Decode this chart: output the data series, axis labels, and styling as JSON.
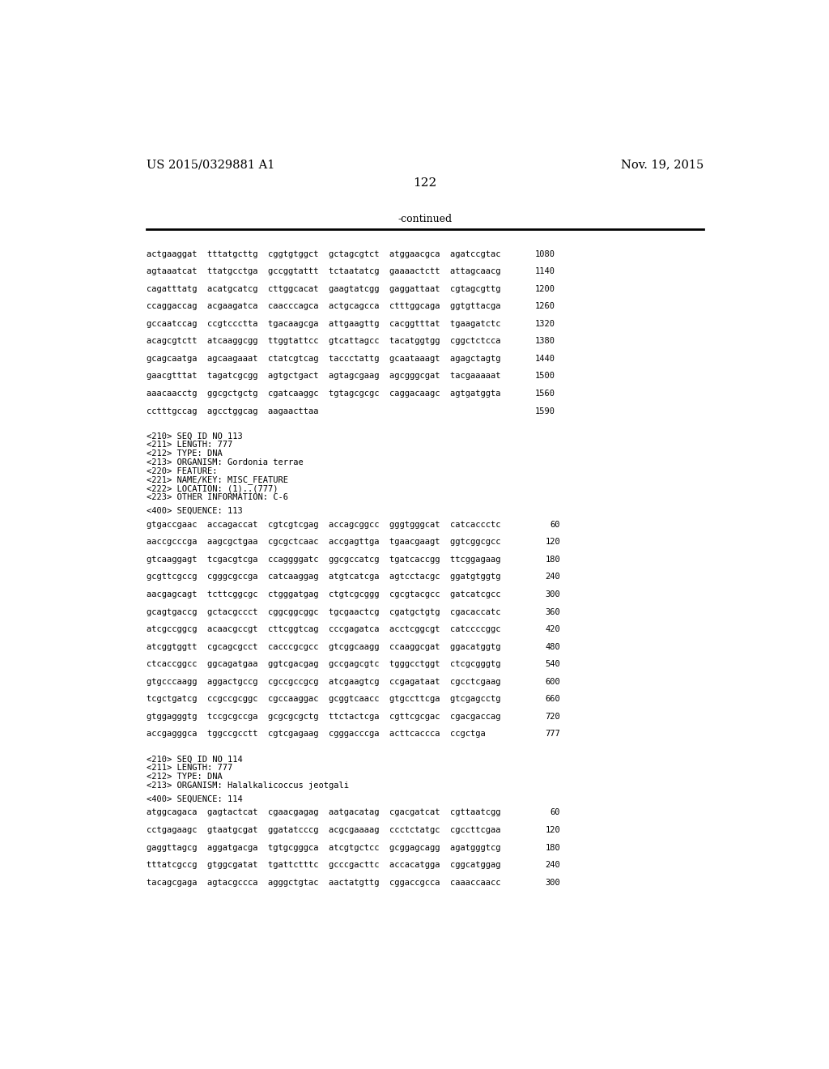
{
  "header_left": "US 2015/0329881 A1",
  "header_right": "Nov. 19, 2015",
  "page_number": "122",
  "continued_text": "-continued",
  "background_color": "#ffffff",
  "text_color": "#000000",
  "mono_font_size": 7.5,
  "header_font_size": 10.5,
  "page_num_font_size": 11,
  "continued_font_size": 9.0,
  "seq_lines": [
    [
      "actgaaggat  tttatgcttg  cggtgtggct  gctagcgtct  atggaacgca  agatccgtac",
      "1080"
    ],
    [
      "agtaaatcat  ttatgcctga  gccggtattt  tctaatatcg  gaaaactctt  attagcaacg",
      "1140"
    ],
    [
      "cagatttatg  acatgcatcg  cttggcacat  gaagtatcgg  gaggattaat  cgtagcgttg",
      "1200"
    ],
    [
      "ccaggaccag  acgaagatca  caacccagca  actgcagcca  ctttggcaga  ggtgttacga",
      "1260"
    ],
    [
      "gccaatccag  ccgtccctta  tgacaagcga  attgaagttg  cacggtttat  tgaagatctc",
      "1320"
    ],
    [
      "acagcgtctt  atcaaggcgg  ttggtattcc  gtcattagcc  tacatggtgg  cggctctcca",
      "1380"
    ],
    [
      "gcagcaatga  agcaagaaat  ctatcgtcag  taccctattg  gcaataaagt  agagctagtg",
      "1440"
    ],
    [
      "gaacgtttat  tagatcgcgg  agtgctgact  agtagcgaag  agcgggcgat  tacgaaaaat",
      "1500"
    ],
    [
      "aaacaacctg  ggcgctgctg  cgatcaaggc  tgtagcgcgc  caggacaagc  agtgatggta",
      "1560"
    ],
    [
      "cctttgccag  agcctggcag  aagaacttaa",
      "1590"
    ]
  ],
  "meta_113": [
    "<210> SEQ ID NO 113",
    "<211> LENGTH: 777",
    "<212> TYPE: DNA",
    "<213> ORGANISM: Gordonia terrae",
    "<220> FEATURE:",
    "<221> NAME/KEY: MISC_FEATURE",
    "<222> LOCATION: (1)..(777)",
    "<223> OTHER INFORMATION: C-6"
  ],
  "seq_400_113": "<400> SEQUENCE: 113",
  "seq_113_lines": [
    [
      "gtgaccgaac  accagaccat  cgtcgtcgag  accagcggcc  gggtgggcat  catcaccctc",
      "60"
    ],
    [
      "aaccgcccga  aagcgctgaa  cgcgctcaac  accgagttga  tgaacgaagt  ggtcggcgcc",
      "120"
    ],
    [
      "gtcaaggagt  tcgacgtcga  ccaggggatc  ggcgccatcg  tgatcaccgg  ttcggagaag",
      "180"
    ],
    [
      "gcgttcgccg  cgggcgccga  catcaaggag  atgtcatcga  agtcctacgc  ggatgtggtg",
      "240"
    ],
    [
      "aacgagcagt  tcttcggcgc  ctgggatgag  ctgtcgcggg  cgcgtacgcc  gatcatcgcc",
      "300"
    ],
    [
      "gcagtgaccg  gctacgccct  cggcggcggc  tgcgaactcg  cgatgctgtg  cgacaccatc",
      "360"
    ],
    [
      "atcgccggcg  acaacgccgt  cttcggtcag  cccgagatca  acctcggcgt  catccccggc",
      "420"
    ],
    [
      "atcggtggtt  cgcagcgcct  cacccgcgcc  gtcggcaagg  ccaaggcgat  ggacatggtg",
      "480"
    ],
    [
      "ctcaccggcc  ggcagatgaa  ggtcgacgag  gccgagcgtc  tgggcctggt  ctcgcgggtg",
      "540"
    ],
    [
      "gtgcccaagg  aggactgccg  cgccgccgcg  atcgaagtcg  ccgagataat  cgcctcgaag",
      "600"
    ],
    [
      "tcgctgatcg  ccgccgcggc  cgccaaggac  gcggtcaacc  gtgccttcga  gtcgagcctg",
      "660"
    ],
    [
      "gtggagggtg  tccgcgccga  gcgcgcgctg  ttctactcga  cgttcgcgac  cgacgaccag",
      "720"
    ],
    [
      "accgagggca  tggccgcctt  cgtcgagaag  cgggacccga  acttcaccca  ccgctga",
      "777"
    ]
  ],
  "meta_114": [
    "<210> SEQ ID NO 114",
    "<211> LENGTH: 777",
    "<212> TYPE: DNA",
    "<213> ORGANISM: Halalkalicoccus jeotgali"
  ],
  "seq_400_114": "<400> SEQUENCE: 114",
  "seq_114_lines": [
    [
      "atggcagaca  gagtactcat  cgaacgagag  aatgacatag  cgacgatcat  cgttaatcgg",
      "60"
    ],
    [
      "cctgagaagc  gtaatgcgat  ggatatcccg  acgcgaaaag  ccctctatgc  cgccttcgaa",
      "120"
    ],
    [
      "gaggttagcg  aggatgacga  tgtgcgggca  atcgtgctcc  gcggagcagg  agatgggtcg",
      "180"
    ],
    [
      "tttatcgccg  gtggcgatat  tgattctttc  gcccgacttc  accacatgga  cggcatggag",
      "240"
    ],
    [
      "tacagcgaga  agtacgccca  agggctgtac  aactatgttg  cggaccgcca  caaaccaacc",
      "300"
    ]
  ]
}
